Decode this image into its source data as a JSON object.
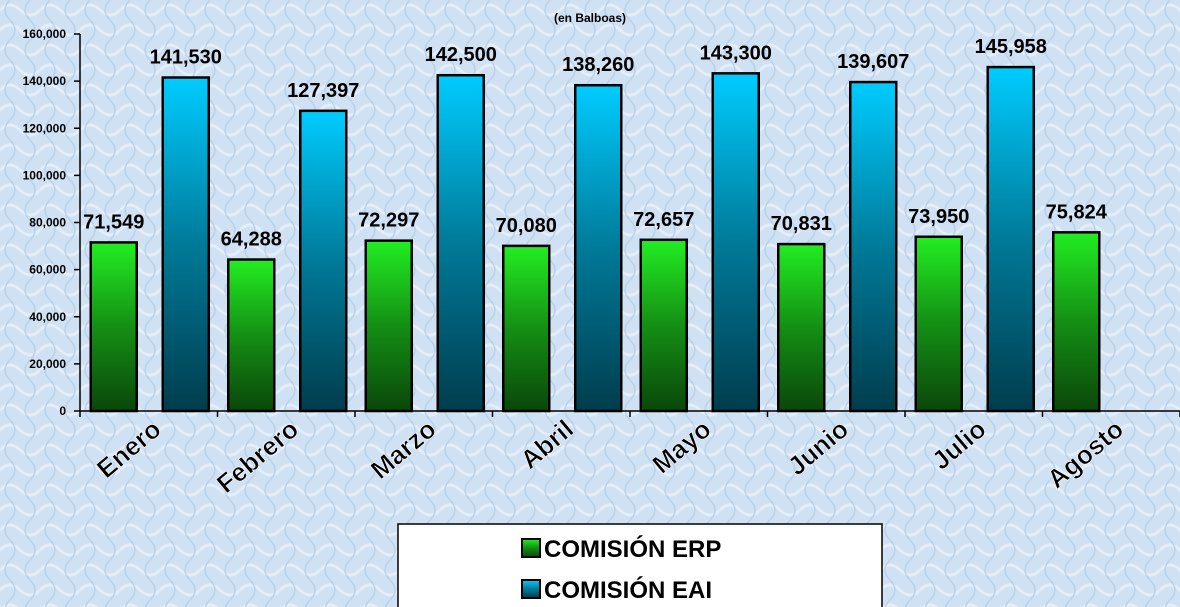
{
  "chart_data": {
    "type": "bar",
    "subtitle": "(en Balboas)",
    "categories": [
      "Enero",
      "Febrero",
      "Marzo",
      "Abril",
      "Mayo",
      "Junio",
      "Julio",
      "Agosto"
    ],
    "series": [
      {
        "name": "COMISIÓN ERP",
        "color": "#22ee22",
        "values": [
          71549,
          64288,
          72297,
          70080,
          72657,
          70831,
          73950,
          75824
        ],
        "value_labels": [
          "71,549",
          "64,288",
          "72,297",
          "70,080",
          "72,657",
          "70,831",
          "73,950",
          "75,824"
        ]
      },
      {
        "name": "COMISIÓN EAI",
        "color": "#00ccff",
        "values": [
          141530,
          127397,
          142500,
          138260,
          143300,
          139607,
          145958,
          null
        ],
        "value_labels": [
          "141,530",
          "127,397",
          "142,500",
          "138,260",
          "143,300",
          "139,607",
          "145,958",
          null
        ]
      }
    ],
    "ylim": [
      0,
      160000
    ],
    "yticks": [
      0,
      {
        "value": 20000,
        "label": "20,000"
      },
      {
        "value": 40000,
        "label": "40,000"
      },
      {
        "value": 60000,
        "label": "60,000"
      },
      {
        "value": 80000,
        "label": "80,000"
      },
      {
        "value": 100000,
        "label": "100,000"
      },
      {
        "value": 120000,
        "label": "120,000"
      },
      {
        "value": 140000,
        "label": "140,000"
      },
      {
        "value": 160000,
        "label": "160,000"
      }
    ],
    "legend": "bottom"
  }
}
